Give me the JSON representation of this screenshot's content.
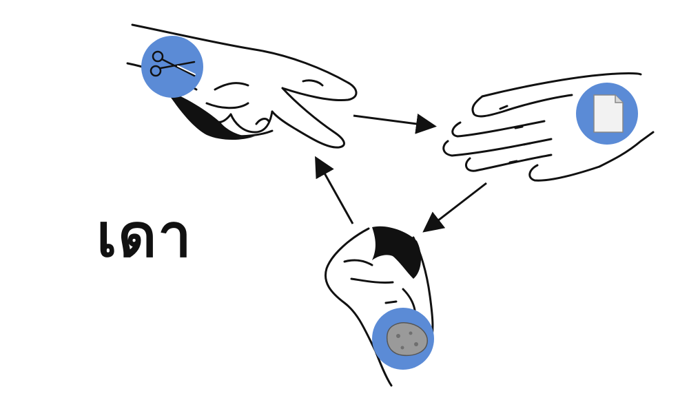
{
  "title": "เดา",
  "colors": {
    "badge": "#5b8bd6",
    "ink": "#111111",
    "paper": "#f2f2f2",
    "rock": "#9a9a9a"
  },
  "nodes": [
    {
      "id": "scissors",
      "hand": "two-finger-hand",
      "icon": "scissors-icon"
    },
    {
      "id": "paper",
      "hand": "open-hand",
      "icon": "paper-icon"
    },
    {
      "id": "rock",
      "hand": "fist-hand",
      "icon": "rock-icon"
    }
  ],
  "edges": [
    {
      "from": "scissors",
      "to": "paper"
    },
    {
      "from": "paper",
      "to": "rock"
    },
    {
      "from": "rock",
      "to": "scissors"
    }
  ]
}
